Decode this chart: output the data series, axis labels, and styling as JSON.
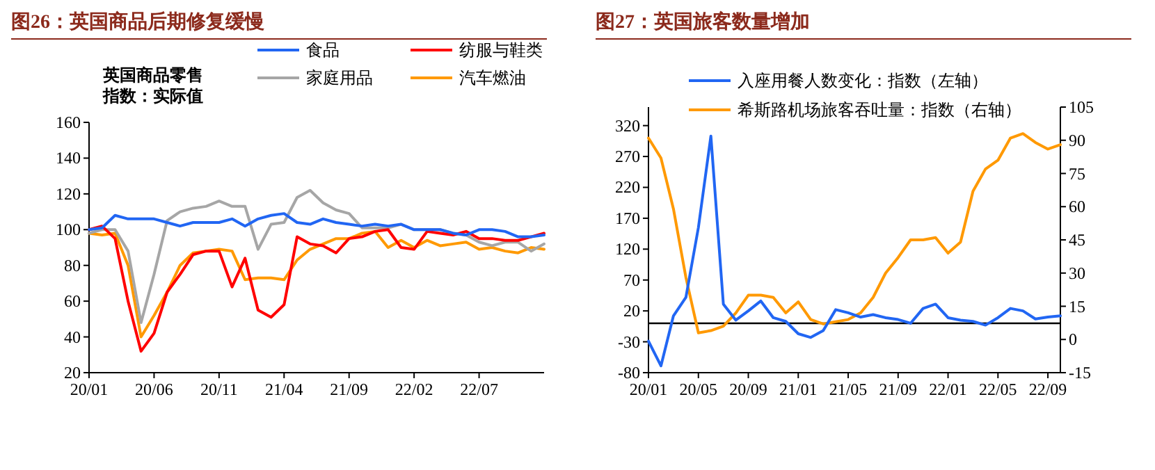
{
  "chart_data": [
    {
      "type": "line",
      "title": "图26：英国商品后期修复缓慢",
      "ylabel": "英国商品零售指数：实际值",
      "legend": "top",
      "categories": [
        "20/01",
        null,
        null,
        null,
        null,
        "20/06",
        null,
        null,
        null,
        null,
        "20/11",
        null,
        null,
        null,
        null,
        "21/04",
        null,
        null,
        null,
        null,
        "21/09",
        null,
        null,
        null,
        null,
        "22/02",
        null,
        null,
        null,
        null,
        "22/07",
        null,
        null,
        null,
        null,
        null
      ],
      "ylim": [
        20,
        160
      ],
      "yticks": [
        20,
        40,
        60,
        80,
        100,
        120,
        140,
        160
      ],
      "series": [
        {
          "name": "食品",
          "color": "#2166f3",
          "values": [
            100,
            101,
            108,
            106,
            106,
            106,
            104,
            102,
            104,
            104,
            104,
            106,
            102,
            106,
            108,
            109,
            104,
            103,
            106,
            104,
            103,
            102,
            103,
            102,
            103,
            100,
            100,
            100,
            98,
            97,
            100,
            100,
            99,
            96,
            96,
            97
          ]
        },
        {
          "name": "纺服与鞋类",
          "color": "#ff0000",
          "values": [
            100,
            102,
            95,
            60,
            32,
            42,
            65,
            75,
            86,
            88,
            88,
            68,
            84,
            55,
            51,
            58,
            96,
            92,
            91,
            87,
            95,
            96,
            99,
            100,
            90,
            89,
            99,
            98,
            97,
            99,
            95,
            95,
            94,
            94,
            96,
            98
          ]
        },
        {
          "name": "家庭用品",
          "color": "#a6a6a6",
          "values": [
            98,
            100,
            100,
            88,
            48,
            75,
            105,
            110,
            112,
            113,
            116,
            113,
            113,
            89,
            103,
            104,
            118,
            122,
            115,
            111,
            109,
            101,
            101,
            101,
            103,
            100,
            100,
            100,
            98,
            97,
            93,
            91,
            93,
            93,
            88,
            92
          ]
        },
        {
          "name": "汽车燃油",
          "color": "#ff9900",
          "values": [
            98,
            97,
            98,
            80,
            40,
            52,
            65,
            80,
            87,
            88,
            89,
            88,
            72,
            73,
            73,
            72,
            83,
            89,
            92,
            95,
            95,
            98,
            99,
            90,
            94,
            90,
            94,
            91,
            92,
            93,
            89,
            90,
            88,
            87,
            90,
            89
          ]
        }
      ]
    },
    {
      "type": "line",
      "title": "图27：英国旅客数量增加",
      "legend": "top",
      "categories": [
        "20/01",
        null,
        null,
        null,
        "20/05",
        null,
        null,
        null,
        "20/09",
        null,
        null,
        null,
        "21/01",
        null,
        null,
        null,
        "21/05",
        null,
        null,
        null,
        "21/09",
        null,
        null,
        null,
        "22/01",
        null,
        null,
        null,
        "22/05",
        null,
        null,
        null,
        "22/09",
        null
      ],
      "ylim": [
        -80,
        350
      ],
      "yticks": [
        -80,
        -30,
        20,
        70,
        120,
        170,
        220,
        270,
        320
      ],
      "y2lim": [
        -15,
        105
      ],
      "y2ticks": [
        -15,
        0,
        15,
        30,
        45,
        60,
        75,
        90,
        105
      ],
      "ref_lines": [
        {
          "axis": "y",
          "value": 0,
          "color": "#000000"
        }
      ],
      "series": [
        {
          "name": "入座用餐人数变化：指数（左轴）",
          "color": "#2166f3",
          "values": [
            -29,
            -69,
            12,
            42,
            155,
            303,
            31,
            5,
            20,
            36,
            9,
            3,
            -17,
            -23,
            -12,
            22,
            17,
            10,
            14,
            9,
            6,
            0,
            24,
            31,
            9,
            5,
            3,
            -3,
            9,
            24,
            20,
            7,
            10,
            12
          ]
        },
        {
          "name": "希斯路机场旅客吞吐量：指数（右轴）",
          "color": "#ff9900",
          "axis": "y2",
          "values": [
            91,
            82,
            59,
            28,
            3,
            4,
            6,
            12,
            20,
            20,
            19,
            12,
            17,
            9,
            7,
            8,
            9,
            12,
            19,
            30,
            37,
            45,
            45,
            46,
            39,
            44,
            67,
            77,
            81,
            91,
            93,
            89,
            86,
            88
          ]
        }
      ]
    }
  ]
}
